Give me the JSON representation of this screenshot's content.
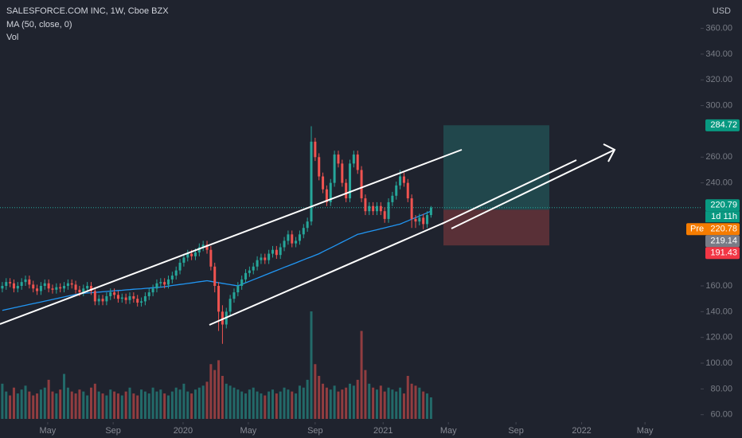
{
  "chart_data": {
    "type": "candlestick",
    "title": "SALESFORCE.COM INC, 1W, Cboe BZX",
    "ma_label": "MA (50, close, 0)",
    "volume_label": "Vol",
    "currency": "USD",
    "up_color": "#26a69a",
    "down_color": "#ef5350",
    "ma_color": "#2196f3",
    "open": [
      158,
      160,
      163,
      162,
      158,
      160,
      163,
      165,
      161,
      158,
      156,
      160,
      162,
      158,
      157,
      159,
      158,
      160,
      162,
      161,
      157,
      155,
      158,
      160,
      156,
      148,
      150,
      148,
      152,
      155,
      153,
      150,
      151,
      149,
      152,
      150,
      147,
      148,
      152,
      155,
      158,
      162,
      163,
      161,
      165,
      168,
      172,
      178,
      182,
      185,
      183,
      186,
      190,
      192,
      188,
      175,
      160,
      140,
      130,
      140,
      150,
      155,
      160,
      165,
      170,
      172,
      175,
      180,
      182,
      180,
      185,
      188,
      184,
      190,
      195,
      200,
      193,
      195,
      200,
      205,
      210,
      272,
      260,
      245,
      235,
      225,
      240,
      262,
      255,
      240,
      228,
      255,
      262,
      250,
      228,
      218,
      222,
      218,
      222,
      218,
      212,
      225,
      230,
      238,
      245,
      240,
      228,
      212,
      210,
      213,
      208,
      215
    ],
    "high": [
      163,
      166,
      166,
      165,
      163,
      166,
      168,
      168,
      164,
      161,
      163,
      165,
      165,
      161,
      162,
      162,
      163,
      165,
      165,
      164,
      160,
      161,
      163,
      163,
      159,
      153,
      153,
      155,
      158,
      158,
      156,
      154,
      154,
      155,
      155,
      153,
      151,
      155,
      158,
      161,
      165,
      166,
      166,
      168,
      171,
      175,
      181,
      185,
      188,
      188,
      189,
      193,
      195,
      195,
      191,
      178,
      163,
      145,
      143,
      153,
      158,
      163,
      168,
      173,
      175,
      178,
      183,
      185,
      185,
      188,
      191,
      191,
      193,
      198,
      203,
      203,
      198,
      203,
      208,
      213,
      284,
      275,
      263,
      248,
      238,
      243,
      265,
      265,
      258,
      243,
      258,
      265,
      265,
      253,
      231,
      225,
      225,
      225,
      225,
      221,
      228,
      233,
      241,
      250,
      248,
      243,
      231,
      215,
      216,
      216,
      218,
      222
    ],
    "low": [
      155,
      157,
      159,
      155,
      155,
      157,
      160,
      158,
      155,
      153,
      153,
      157,
      155,
      154,
      154,
      155,
      155,
      157,
      158,
      154,
      152,
      152,
      155,
      153,
      145,
      145,
      145,
      145,
      149,
      150,
      147,
      147,
      146,
      146,
      147,
      144,
      144,
      145,
      149,
      152,
      155,
      159,
      158,
      158,
      162,
      165,
      169,
      175,
      179,
      180,
      180,
      183,
      187,
      185,
      172,
      155,
      125,
      115,
      127,
      137,
      147,
      152,
      157,
      162,
      167,
      169,
      172,
      177,
      177,
      177,
      182,
      181,
      181,
      187,
      192,
      190,
      190,
      192,
      197,
      202,
      207,
      257,
      242,
      232,
      222,
      222,
      237,
      252,
      237,
      225,
      225,
      252,
      247,
      225,
      215,
      215,
      215,
      215,
      215,
      209,
      209,
      222,
      227,
      235,
      237,
      225,
      205,
      205,
      207,
      204,
      205,
      213
    ],
    "close": [
      160,
      163,
      162,
      158,
      160,
      163,
      165,
      161,
      158,
      156,
      160,
      162,
      158,
      157,
      159,
      158,
      160,
      162,
      161,
      157,
      155,
      158,
      160,
      156,
      148,
      150,
      148,
      152,
      155,
      153,
      150,
      151,
      149,
      152,
      150,
      147,
      148,
      152,
      155,
      158,
      162,
      163,
      161,
      165,
      168,
      172,
      178,
      182,
      185,
      183,
      186,
      190,
      192,
      188,
      175,
      160,
      140,
      130,
      140,
      150,
      155,
      160,
      165,
      170,
      172,
      175,
      180,
      182,
      180,
      185,
      188,
      184,
      190,
      195,
      200,
      193,
      195,
      200,
      205,
      210,
      272,
      260,
      245,
      235,
      225,
      240,
      262,
      255,
      240,
      228,
      255,
      262,
      250,
      228,
      218,
      222,
      218,
      222,
      218,
      212,
      225,
      230,
      238,
      245,
      240,
      228,
      212,
      210,
      213,
      208,
      215,
      220.79
    ],
    "volume": [
      18,
      14,
      12,
      16,
      13,
      15,
      17,
      14,
      12,
      13,
      15,
      16,
      20,
      14,
      13,
      15,
      23,
      16,
      14,
      13,
      15,
      14,
      12,
      16,
      18,
      14,
      13,
      12,
      15,
      14,
      13,
      12,
      14,
      16,
      13,
      12,
      15,
      14,
      13,
      16,
      14,
      15,
      13,
      12,
      14,
      16,
      15,
      18,
      14,
      13,
      15,
      16,
      17,
      19,
      28,
      25,
      30,
      22,
      18,
      17,
      16,
      15,
      14,
      13,
      15,
      16,
      14,
      13,
      12,
      14,
      15,
      13,
      14,
      16,
      15,
      14,
      13,
      17,
      16,
      20,
      55,
      28,
      22,
      18,
      16,
      15,
      17,
      14,
      15,
      16,
      18,
      17,
      20,
      45,
      25,
      18,
      16,
      15,
      17,
      14,
      16,
      15,
      14,
      16,
      13,
      22,
      18,
      17,
      16,
      14,
      13,
      11
    ],
    "ma": [
      141,
      141.7,
      142.3,
      143,
      143.6,
      144.3,
      144.9,
      145.6,
      146.2,
      146.9,
      147.5,
      148.2,
      148.8,
      149.5,
      150.1,
      150.8,
      151.4,
      152.1,
      152.7,
      153.4,
      154,
      154.2,
      154.5,
      154.7,
      155,
      155.2,
      155.4,
      155.7,
      155.9,
      156.2,
      156.4,
      156.6,
      156.9,
      157.1,
      157.4,
      157.6,
      157.8,
      158.1,
      158.3,
      158.6,
      158.8,
      159,
      159.4,
      159.8,
      160.3,
      160.7,
      161.1,
      161.5,
      161.9,
      162.3,
      162.8,
      163.2,
      163.6,
      164,
      163.5,
      163,
      162.5,
      162,
      161.5,
      161,
      160.5,
      160,
      161.2,
      162.4,
      163.6,
      164.8,
      166,
      167.2,
      168.4,
      169.6,
      170.8,
      172,
      173.2,
      174.4,
      175.5,
      176.7,
      177.9,
      179.1,
      180.3,
      181.5,
      182.6,
      183.8,
      185,
      186.5,
      188,
      189.5,
      191,
      192.5,
      194,
      195.5,
      197,
      198.5,
      200,
      200.7,
      201.5,
      202.2,
      202.9,
      203.6,
      204.4,
      205.1,
      205.8,
      206.5,
      207.3,
      208,
      209.3,
      210.5,
      211.8,
      213,
      214.3,
      215.5,
      216.8,
      218
    ],
    "xlim": [
      -0.6,
      180.8
    ],
    "ylim": [
      54.26,
      382.0
    ],
    "xticks": [
      {
        "value": 11.75,
        "label": "May"
      },
      {
        "value": 28.7,
        "label": "Sep"
      },
      {
        "value": 46.8,
        "label": "2020"
      },
      {
        "value": 63.7,
        "label": "May"
      },
      {
        "value": 81,
        "label": "Sep"
      },
      {
        "value": 98.6,
        "label": "2021"
      },
      {
        "value": 115.5,
        "label": "May"
      },
      {
        "value": 133,
        "label": "Sep"
      },
      {
        "value": 150,
        "label": "2022"
      },
      {
        "value": 166.4,
        "label": "May"
      }
    ],
    "yticks": [
      {
        "value": 360,
        "label": "360.00"
      },
      {
        "value": 340,
        "label": "340.00"
      },
      {
        "value": 320,
        "label": "320.00"
      },
      {
        "value": 300,
        "label": "300.00"
      },
      {
        "value": 260,
        "label": "260.00"
      },
      {
        "value": 240,
        "label": "240.00"
      },
      {
        "value": 160,
        "label": "160.00"
      },
      {
        "value": 140,
        "label": "140.00"
      },
      {
        "value": 120,
        "label": "120.00"
      },
      {
        "value": 100,
        "label": "100.00"
      },
      {
        "value": 80,
        "label": "80.00"
      },
      {
        "value": 60,
        "label": "60.00"
      }
    ],
    "price_labels": {
      "target": {
        "value": 284.72,
        "color": "#089981"
      },
      "last": {
        "value": 220.79,
        "countdown": "1d 11h",
        "color": "#089981"
      },
      "pre": {
        "prefix": "Pre",
        "value": 220.78,
        "color": "#f57c00"
      },
      "entry": {
        "value": 219.14,
        "color": "#787b86"
      },
      "stop": {
        "value": 191.43,
        "color": "#f23645"
      }
    }
  }
}
